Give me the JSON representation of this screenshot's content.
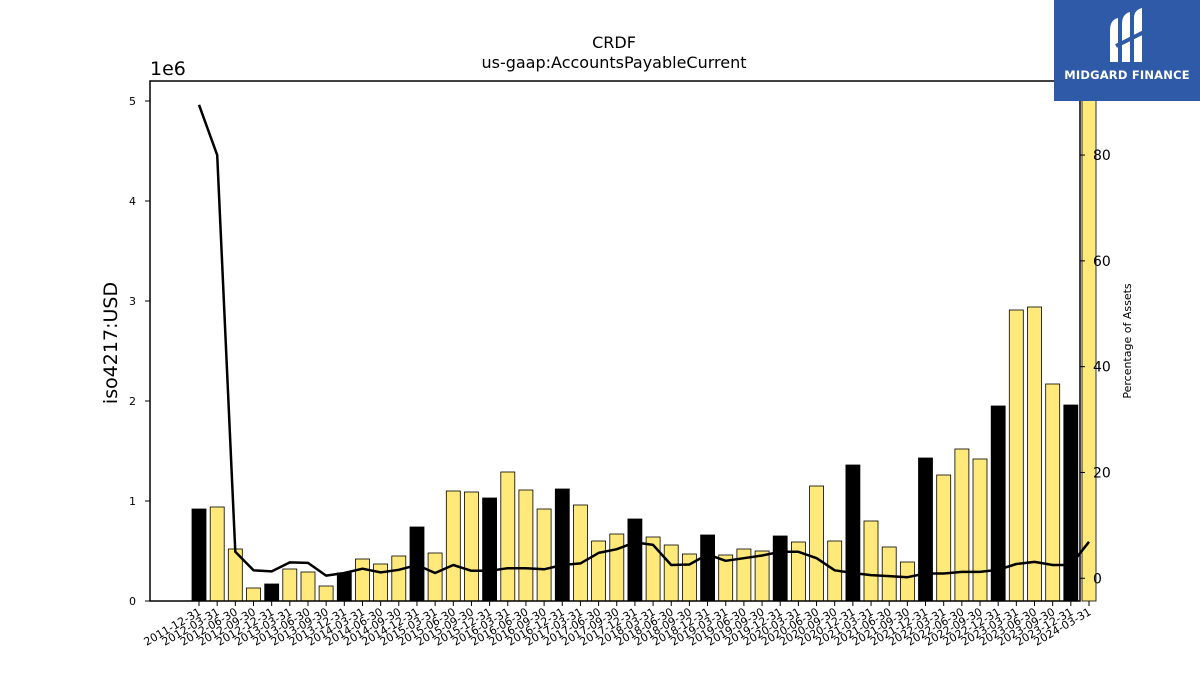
{
  "chart_data": {
    "type": "bar",
    "title": "CRDF",
    "subtitle": "us-gaap:AccountsPayableCurrent",
    "ylabel": "iso4217:USD",
    "y_scale_label": "1e6",
    "y2label": "Percentage of Assets",
    "ylim": [
      0,
      5200000
    ],
    "y2lim": [
      -4.3,
      94
    ],
    "yticks": [
      0,
      1,
      2,
      3,
      4,
      5
    ],
    "y2ticks": [
      0,
      20,
      40,
      60,
      80
    ],
    "categories": [
      "2011-12-31",
      "2012-03-31",
      "2012-06-30",
      "2012-09-30",
      "2012-12-31",
      "2013-03-31",
      "2013-06-30",
      "2013-09-30",
      "2013-12-31",
      "2014-03-31",
      "2014-06-30",
      "2014-09-30",
      "2014-12-31",
      "2015-03-31",
      "2015-06-30",
      "2015-09-30",
      "2015-12-31",
      "2016-03-31",
      "2016-06-30",
      "2016-09-30",
      "2016-12-31",
      "2017-03-31",
      "2017-06-30",
      "2017-09-30",
      "2017-12-31",
      "2018-03-31",
      "2018-06-30",
      "2018-09-30",
      "2018-12-31",
      "2019-03-31",
      "2019-06-30",
      "2019-09-30",
      "2019-12-31",
      "2020-03-31",
      "2020-06-30",
      "2020-09-30",
      "2020-12-31",
      "2021-03-31",
      "2021-06-30",
      "2021-09-30",
      "2021-12-31",
      "2022-03-31",
      "2022-06-30",
      "2022-09-30",
      "2022-12-31",
      "2023-03-31",
      "2023-06-30",
      "2023-09-30",
      "2023-12-31",
      "2024-03-31"
    ],
    "series": [
      {
        "type": "bar",
        "axis": "left",
        "values": [
          920000,
          940000,
          520000,
          130000,
          170000,
          320000,
          290000,
          150000,
          280000,
          420000,
          370000,
          450000,
          740000,
          480000,
          1100000,
          1090000,
          1030000,
          1290000,
          1110000,
          920000,
          1120000,
          960000,
          600000,
          670000,
          820000,
          640000,
          560000,
          470000,
          660000,
          460000,
          520000,
          500000,
          650000,
          590000,
          1150000,
          600000,
          1360000,
          800000,
          540000,
          390000,
          1430000,
          1260000,
          1520000,
          1420000,
          1950000,
          2910000,
          2940000,
          2170000,
          1960000,
          5200000
        ],
        "highlight": [
          true,
          false,
          false,
          false,
          true,
          false,
          false,
          false,
          true,
          false,
          false,
          false,
          true,
          false,
          false,
          false,
          true,
          false,
          false,
          false,
          true,
          false,
          false,
          false,
          true,
          false,
          false,
          false,
          true,
          false,
          false,
          false,
          true,
          false,
          false,
          false,
          true,
          false,
          false,
          false,
          true,
          false,
          false,
          false,
          true,
          false,
          false,
          false,
          true,
          false
        ],
        "color": "#ffe97a",
        "highlight_color": "#000000"
      },
      {
        "type": "line",
        "axis": "right",
        "values": [
          89.5,
          80,
          5,
          1.5,
          1.3,
          3,
          2.9,
          0.5,
          1,
          1.8,
          1.1,
          1.6,
          2.5,
          1,
          2.5,
          1.4,
          1.4,
          1.9,
          1.9,
          1.7,
          2.5,
          2.8,
          4.8,
          5.5,
          6.8,
          6.3,
          2.5,
          2.6,
          4.5,
          3.3,
          3.8,
          4.3,
          5,
          5,
          3.8,
          1.5,
          1,
          0.6,
          0.4,
          0.2,
          0.9,
          0.9,
          1.2,
          1.2,
          1.6,
          2.7,
          3.1,
          2.5,
          2.5,
          6.9
        ],
        "color": "#000000"
      }
    ],
    "grid": false,
    "legend": "none"
  },
  "logo": {
    "text": "MIDGARD FINANCE",
    "background": "#2f5aa8",
    "icon": "midgard-logo-icon"
  }
}
